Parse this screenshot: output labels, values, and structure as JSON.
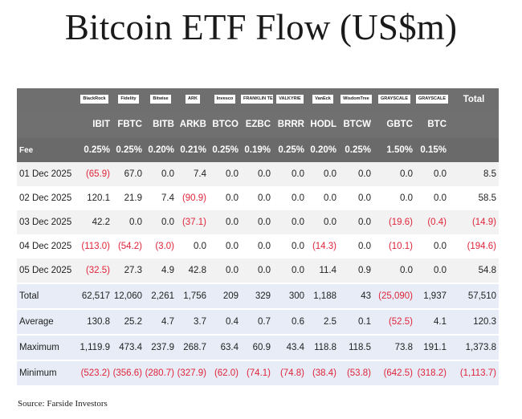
{
  "title": "Bitcoin ETF Flow (US$m)",
  "source": "Source: Farside Investors",
  "logos": [
    "BlackRock",
    "Fidelity",
    "Bitwise",
    "ARK",
    "Invesco",
    "FRANKLIN TEMPLETON",
    "VALKYRIE",
    "VanEck",
    "WisdomTree",
    "GRAYSCALE",
    "GRAYSCALE"
  ],
  "total_header": "Total",
  "tickers": [
    "IBIT",
    "FBTC",
    "BITB",
    "ARKB",
    "BTCO",
    "EZBC",
    "BRRR",
    "HODL",
    "BTCW",
    "GBTC",
    "BTC"
  ],
  "fee": {
    "label": "Fee",
    "values": [
      "0.25%",
      "0.25%",
      "0.20%",
      "0.21%",
      "0.25%",
      "0.19%",
      "0.25%",
      "0.20%",
      "0.25%",
      "1.50%",
      "0.15%"
    ],
    "total": ""
  },
  "rows": [
    {
      "label": "01 Dec 2025",
      "values": [
        "(65.9)",
        "67.0",
        "0.0",
        "7.4",
        "0.0",
        "0.0",
        "0.0",
        "0.0",
        "0.0",
        "0.0",
        "0.0"
      ],
      "total": "8.5"
    },
    {
      "label": "02 Dec 2025",
      "values": [
        "120.1",
        "21.9",
        "7.4",
        "(90.9)",
        "0.0",
        "0.0",
        "0.0",
        "0.0",
        "0.0",
        "0.0",
        "0.0"
      ],
      "total": "58.5"
    },
    {
      "label": "03 Dec 2025",
      "values": [
        "42.2",
        "0.0",
        "0.0",
        "(37.1)",
        "0.0",
        "0.0",
        "0.0",
        "0.0",
        "0.0",
        "(19.6)",
        "(0.4)"
      ],
      "total": "(14.9)"
    },
    {
      "label": "04 Dec 2025",
      "values": [
        "(113.0)",
        "(54.2)",
        "(3.0)",
        "0.0",
        "0.0",
        "0.0",
        "0.0",
        "(14.3)",
        "0.0",
        "(10.1)",
        "0.0"
      ],
      "total": "(194.6)"
    },
    {
      "label": "05 Dec 2025",
      "values": [
        "(32.5)",
        "27.3",
        "4.9",
        "42.8",
        "0.0",
        "0.0",
        "0.0",
        "11.4",
        "0.9",
        "0.0",
        "0.0"
      ],
      "total": "54.8"
    }
  ],
  "stats": [
    {
      "label": "Total",
      "values": [
        "62,517",
        "12,060",
        "2,261",
        "1,756",
        "209",
        "329",
        "300",
        "1,188",
        "43",
        "(25,090)",
        "1,937"
      ],
      "total": "57,510"
    },
    {
      "label": "Average",
      "values": [
        "130.8",
        "25.2",
        "4.7",
        "3.7",
        "0.4",
        "0.7",
        "0.6",
        "2.5",
        "0.1",
        "(52.5)",
        "4.1"
      ],
      "total": "120.3"
    },
    {
      "label": "Maximum",
      "values": [
        "1,119.9",
        "473.4",
        "237.9",
        "268.7",
        "63.4",
        "60.9",
        "43.4",
        "118.8",
        "118.5",
        "73.8",
        "191.1"
      ],
      "total": "1,373.8"
    },
    {
      "label": "Minimum",
      "values": [
        "(523.2)",
        "(356.6)",
        "(280.7)",
        "(327.9)",
        "(62.0)",
        "(74.1)",
        "(74.8)",
        "(38.4)",
        "(53.8)",
        "(642.5)",
        "(318.2)"
      ],
      "total": "(1,113.7)"
    }
  ]
}
